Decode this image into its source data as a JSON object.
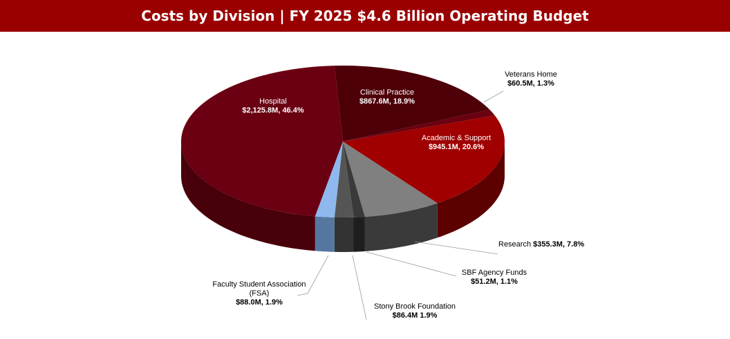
{
  "chart_data": {
    "type": "pie",
    "title": "Costs by Division | FY 2025 $4.6 Billion Operating Budget",
    "slices": [
      {
        "name": "Clinical Practice",
        "value": 867.6,
        "percent": 18.9,
        "value_label": "$867.6M, 18.9%",
        "top": "#4e0008",
        "side": "#33000a"
      },
      {
        "name": "Veterans Home",
        "value": 60.5,
        "percent": 1.3,
        "value_label": "$60.5M, 1.3%",
        "top": "#6a0010",
        "side": "#45000a"
      },
      {
        "name": "Academic & Support",
        "value": 945.1,
        "percent": 20.6,
        "value_label": "$945.1M, 20.6%",
        "top": "#a00000",
        "side": "#5c0000"
      },
      {
        "name": "Research",
        "value": 355.3,
        "percent": 7.8,
        "value_label": "$355.3M, 7.8%",
        "top": "#808080",
        "side": "#3a3a3a"
      },
      {
        "name": "SBF Agency Funds",
        "value": 51.2,
        "percent": 1.1,
        "value_label": "$51.2M, 1.1%",
        "top": "#3a3a3a",
        "side": "#1e1e1e"
      },
      {
        "name": "Stony Brook Foundation",
        "value": 86.4,
        "percent": 1.9,
        "value_label": "$86.4M 1.9%",
        "top": "#555555",
        "side": "#333333"
      },
      {
        "name": "Faculty Student Association (FSA)",
        "name_line1": "Faculty Student Association",
        "name_line2": "(FSA)",
        "value": 88.0,
        "percent": 1.9,
        "value_label": "$88.0M, 1.9%",
        "top": "#8fb8ef",
        "side": "#55779f"
      },
      {
        "name": "Hospital",
        "value": 2125.8,
        "percent": 46.4,
        "value_label": "$2,125.8M, 46.4%",
        "top": "#6a0012",
        "side": "#48000b"
      }
    ]
  }
}
